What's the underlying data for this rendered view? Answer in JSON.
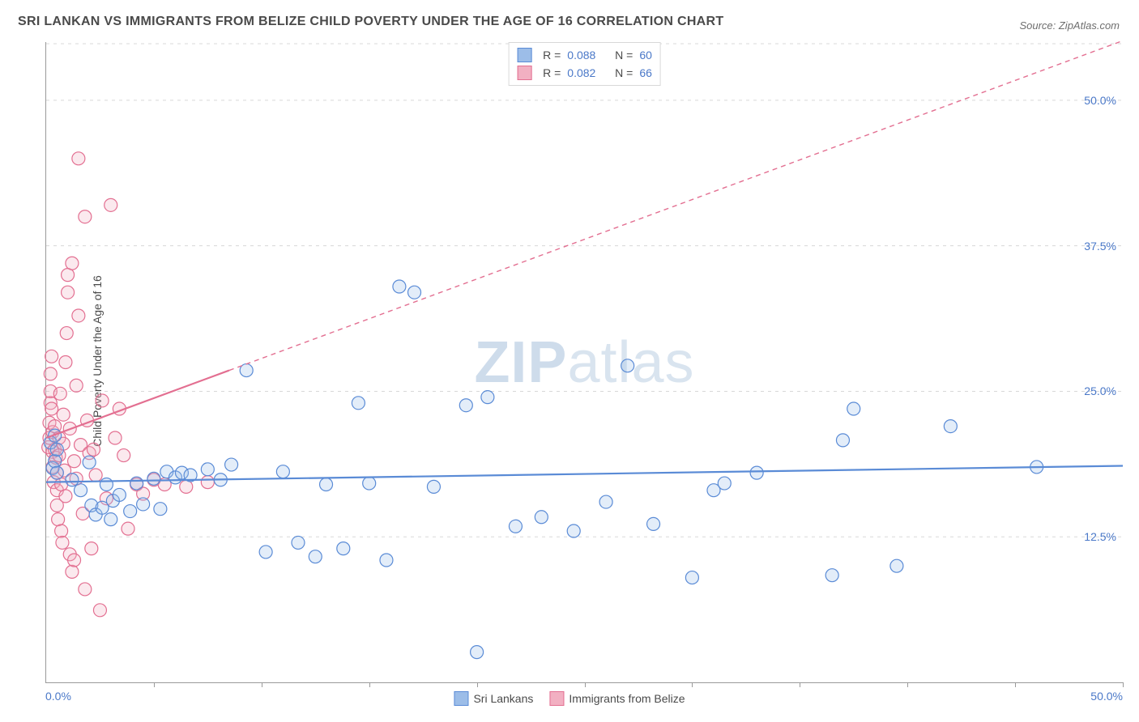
{
  "title": "SRI LANKAN VS IMMIGRANTS FROM BELIZE CHILD POVERTY UNDER THE AGE OF 16 CORRELATION CHART",
  "source_label": "Source: ZipAtlas.com",
  "watermark": "ZIPatlas",
  "y_axis_label": "Child Poverty Under the Age of 16",
  "chart": {
    "type": "scatter",
    "xlim": [
      0,
      50
    ],
    "ylim": [
      0,
      55
    ],
    "x_ticks": [
      5,
      10,
      15,
      20,
      25,
      30,
      35,
      40,
      45,
      50
    ],
    "y_ticks": [
      12.5,
      25.0,
      37.5,
      50.0
    ],
    "y_tick_labels": [
      "12.5%",
      "25.0%",
      "37.5%",
      "50.0%"
    ],
    "x_origin_label": "0.0%",
    "x_max_label": "50.0%",
    "grid_color": "#d8d8d8",
    "axis_color": "#9a9a9a",
    "background_color": "#ffffff",
    "marker_radius": 8,
    "marker_stroke_width": 1.2,
    "marker_fill_opacity": 0.28,
    "trend_line_width": 2.2,
    "trend_dash": "6 5"
  },
  "series": [
    {
      "name": "Sri Lankans",
      "color_stroke": "#5a8bd6",
      "color_fill": "#9cbde8",
      "R": "0.088",
      "N": "60",
      "points": [
        [
          0.2,
          20.6
        ],
        [
          0.3,
          18.4
        ],
        [
          0.4,
          21.2
        ],
        [
          0.4,
          19.0
        ],
        [
          0.5,
          20.0
        ],
        [
          0.5,
          18.0
        ],
        [
          1.2,
          17.4
        ],
        [
          1.6,
          16.5
        ],
        [
          2.0,
          18.9
        ],
        [
          2.1,
          15.2
        ],
        [
          2.3,
          14.4
        ],
        [
          2.6,
          15.0
        ],
        [
          2.8,
          17.0
        ],
        [
          3.0,
          14.0
        ],
        [
          3.1,
          15.6
        ],
        [
          3.4,
          16.1
        ],
        [
          3.9,
          14.7
        ],
        [
          4.2,
          17.1
        ],
        [
          4.5,
          15.3
        ],
        [
          5.0,
          17.5
        ],
        [
          5.3,
          14.9
        ],
        [
          5.6,
          18.1
        ],
        [
          6.0,
          17.6
        ],
        [
          6.3,
          18.0
        ],
        [
          6.7,
          17.8
        ],
        [
          7.5,
          18.3
        ],
        [
          8.1,
          17.4
        ],
        [
          8.6,
          18.7
        ],
        [
          9.3,
          26.8
        ],
        [
          10.2,
          11.2
        ],
        [
          11.0,
          18.1
        ],
        [
          11.7,
          12.0
        ],
        [
          12.5,
          10.8
        ],
        [
          13.0,
          17.0
        ],
        [
          13.8,
          11.5
        ],
        [
          14.5,
          24.0
        ],
        [
          15.0,
          17.1
        ],
        [
          15.8,
          10.5
        ],
        [
          16.4,
          34.0
        ],
        [
          17.1,
          33.5
        ],
        [
          18.0,
          16.8
        ],
        [
          19.5,
          23.8
        ],
        [
          20.5,
          24.5
        ],
        [
          20.0,
          2.6
        ],
        [
          21.8,
          13.4
        ],
        [
          23.0,
          14.2
        ],
        [
          24.5,
          13.0
        ],
        [
          26.0,
          15.5
        ],
        [
          27.0,
          27.2
        ],
        [
          28.2,
          13.6
        ],
        [
          30.0,
          9.0
        ],
        [
          31.0,
          16.5
        ],
        [
          31.5,
          17.1
        ],
        [
          33.0,
          18.0
        ],
        [
          36.5,
          9.2
        ],
        [
          37.5,
          23.5
        ],
        [
          37.0,
          20.8
        ],
        [
          39.5,
          10.0
        ],
        [
          42.0,
          22.0
        ],
        [
          46.0,
          18.5
        ]
      ],
      "trend": {
        "x1": 0,
        "y1": 17.2,
        "x2": 50,
        "y2": 18.6
      }
    },
    {
      "name": "Immigrants from Belize",
      "color_stroke": "#e36f91",
      "color_fill": "#f2b0c2",
      "R": "0.082",
      "N": "66",
      "points": [
        [
          0.1,
          20.2
        ],
        [
          0.15,
          21.0
        ],
        [
          0.15,
          22.3
        ],
        [
          0.2,
          24.0
        ],
        [
          0.2,
          25.0
        ],
        [
          0.2,
          26.5
        ],
        [
          0.25,
          28.0
        ],
        [
          0.25,
          23.5
        ],
        [
          0.3,
          21.5
        ],
        [
          0.3,
          19.8
        ],
        [
          0.3,
          18.5
        ],
        [
          0.35,
          17.2
        ],
        [
          0.4,
          20.0
        ],
        [
          0.4,
          22.0
        ],
        [
          0.45,
          19.3
        ],
        [
          0.5,
          18.0
        ],
        [
          0.5,
          16.5
        ],
        [
          0.5,
          15.2
        ],
        [
          0.55,
          14.0
        ],
        [
          0.6,
          21.0
        ],
        [
          0.6,
          19.5
        ],
        [
          0.65,
          24.8
        ],
        [
          0.7,
          17.0
        ],
        [
          0.7,
          13.0
        ],
        [
          0.75,
          12.0
        ],
        [
          0.8,
          20.5
        ],
        [
          0.8,
          23.0
        ],
        [
          0.85,
          18.2
        ],
        [
          0.9,
          16.0
        ],
        [
          0.9,
          27.5
        ],
        [
          0.95,
          30.0
        ],
        [
          1.0,
          35.0
        ],
        [
          1.0,
          33.5
        ],
        [
          1.1,
          21.8
        ],
        [
          1.1,
          11.0
        ],
        [
          1.2,
          9.5
        ],
        [
          1.2,
          36.0
        ],
        [
          1.3,
          10.5
        ],
        [
          1.3,
          19.0
        ],
        [
          1.4,
          17.5
        ],
        [
          1.4,
          25.5
        ],
        [
          1.5,
          31.5
        ],
        [
          1.5,
          45.0
        ],
        [
          1.6,
          20.4
        ],
        [
          1.7,
          14.5
        ],
        [
          1.8,
          8.0
        ],
        [
          1.8,
          40.0
        ],
        [
          1.9,
          22.5
        ],
        [
          2.0,
          19.7
        ],
        [
          2.1,
          11.5
        ],
        [
          2.2,
          20.0
        ],
        [
          2.3,
          17.8
        ],
        [
          2.5,
          6.2
        ],
        [
          2.6,
          24.2
        ],
        [
          2.8,
          15.8
        ],
        [
          3.0,
          41.0
        ],
        [
          3.2,
          21.0
        ],
        [
          3.4,
          23.5
        ],
        [
          3.6,
          19.5
        ],
        [
          3.8,
          13.2
        ],
        [
          4.2,
          17.0
        ],
        [
          4.5,
          16.2
        ],
        [
          5.0,
          17.4
        ],
        [
          5.5,
          17.0
        ],
        [
          6.5,
          16.8
        ],
        [
          7.5,
          17.2
        ]
      ],
      "trend": {
        "x1": 0,
        "y1": 21.0,
        "x2": 8.5,
        "y2": 26.8
      }
    }
  ],
  "bottom_legend": [
    {
      "label": "Sri Lankans",
      "fill": "#9cbde8",
      "stroke": "#5a8bd6"
    },
    {
      "label": "Immigrants from Belize",
      "fill": "#f2b0c2",
      "stroke": "#e36f91"
    }
  ],
  "top_legend": {
    "rows": [
      {
        "fill": "#9cbde8",
        "stroke": "#5a8bd6",
        "R": "0.088",
        "N": "60"
      },
      {
        "fill": "#f2b0c2",
        "stroke": "#e36f91",
        "R": "0.082",
        "N": "66"
      }
    ]
  }
}
